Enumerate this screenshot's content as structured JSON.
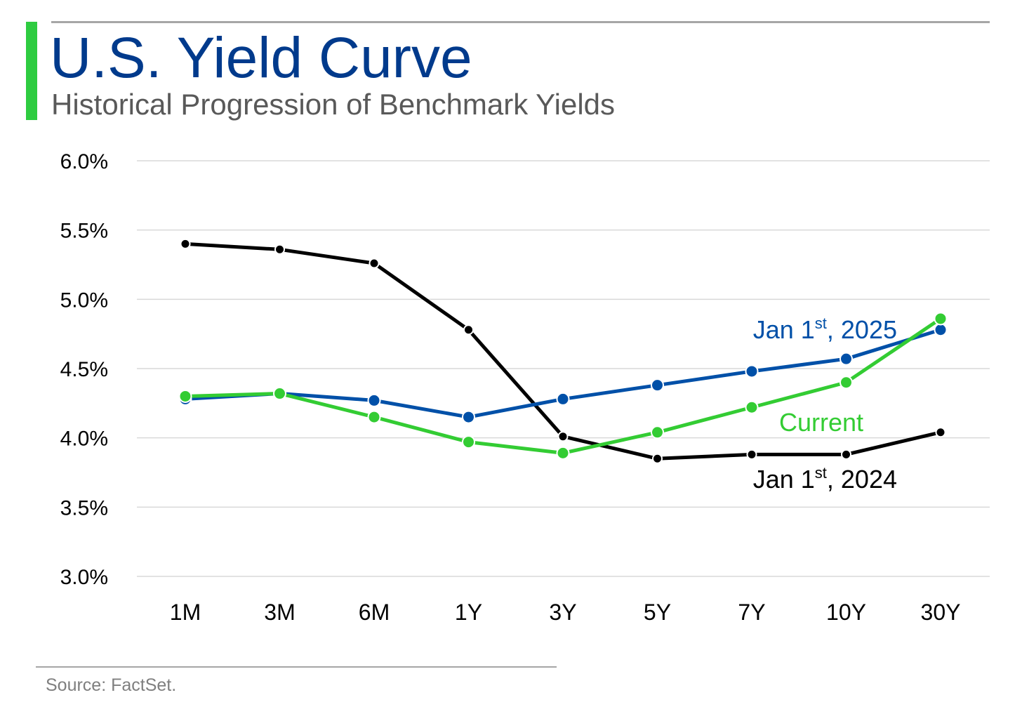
{
  "header": {
    "title": "U.S. Yield Curve",
    "subtitle": "Historical Progression of Benchmark Yields"
  },
  "footer": {
    "source": "Source: FactSet."
  },
  "colors": {
    "accent": "#2ecc40",
    "title": "#003a8c",
    "jan_2025": "#0050a8",
    "current": "#33cc33",
    "jan_2024": "#000000",
    "grid": "#d9d9d9"
  },
  "chart_data": {
    "type": "line",
    "categories": [
      "1M",
      "3M",
      "6M",
      "1Y",
      "3Y",
      "5Y",
      "7Y",
      "10Y",
      "30Y"
    ],
    "ylim": [
      3.0,
      6.0
    ],
    "yticks": [
      "3.0%",
      "3.5%",
      "4.0%",
      "4.5%",
      "5.0%",
      "5.5%",
      "6.0%"
    ],
    "grid": true,
    "series": [
      {
        "key": "jan_2024",
        "label_main": "Jan 1",
        "label_sup": "st",
        "label_tail": ", 2024",
        "color": "#000000",
        "values": [
          5.4,
          5.36,
          5.26,
          4.78,
          4.01,
          3.85,
          3.88,
          3.88,
          4.04
        ]
      },
      {
        "key": "jan_2025",
        "label_main": "Jan 1",
        "label_sup": "st",
        "label_tail": ", 2025",
        "color": "#0050a8",
        "values": [
          4.28,
          4.32,
          4.27,
          4.15,
          4.28,
          4.38,
          4.48,
          4.57,
          4.78
        ]
      },
      {
        "key": "current",
        "label_main": "Current",
        "label_sup": "",
        "label_tail": "",
        "color": "#33cc33",
        "values": [
          4.3,
          4.32,
          4.15,
          3.97,
          3.89,
          4.04,
          4.22,
          4.4,
          4.86
        ]
      }
    ]
  }
}
